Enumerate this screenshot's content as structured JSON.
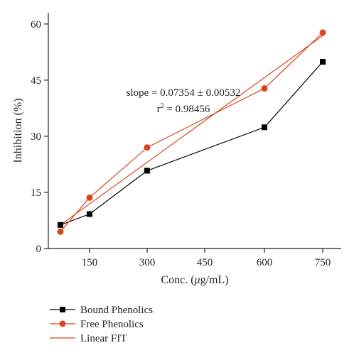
{
  "chart_data": {
    "type": "line",
    "xlabel_prefix": "Conc. (",
    "xlabel_unit_mu": "μ",
    "xlabel_suffix": "g/mL)",
    "ylabel": "Inhibition (%)",
    "categories": [
      "",
      "150",
      "300",
      "450",
      "600",
      "750"
    ],
    "x_positions": [
      75,
      150,
      300,
      450,
      600,
      750
    ],
    "x_tick_labels": [
      "150",
      "300",
      "450",
      "600",
      "750"
    ],
    "x_tick_values": [
      150,
      300,
      450,
      600,
      750
    ],
    "y_ticks": [
      0,
      15,
      30,
      45,
      60
    ],
    "ylim": [
      0,
      63
    ],
    "series": [
      {
        "name": "Bound Phenolics",
        "marker": "square",
        "color": "#000000",
        "x": [
          75,
          150,
          300,
          600,
          750
        ],
        "values": [
          6.3,
          9.2,
          20.8,
          32.4,
          49.9
        ]
      },
      {
        "name": "Free Phenolics",
        "marker": "circle",
        "color": "#d9451c",
        "x": [
          75,
          150,
          300,
          600,
          750
        ],
        "values": [
          4.5,
          13.6,
          27.0,
          42.8,
          57.7
        ]
      },
      {
        "name": "Linear FIT",
        "marker": "none",
        "color": "#d9451c",
        "x": [
          75,
          750
        ],
        "values": [
          6.3,
          56.9
        ]
      }
    ],
    "annotation": {
      "slope_text": "slope = 0.07354 ± 0.00532",
      "r2_prefix": "r",
      "r2_sup": "2",
      "r2_suffix": " = 0.98456"
    },
    "legend_position": "bottom-left",
    "grid": false
  }
}
